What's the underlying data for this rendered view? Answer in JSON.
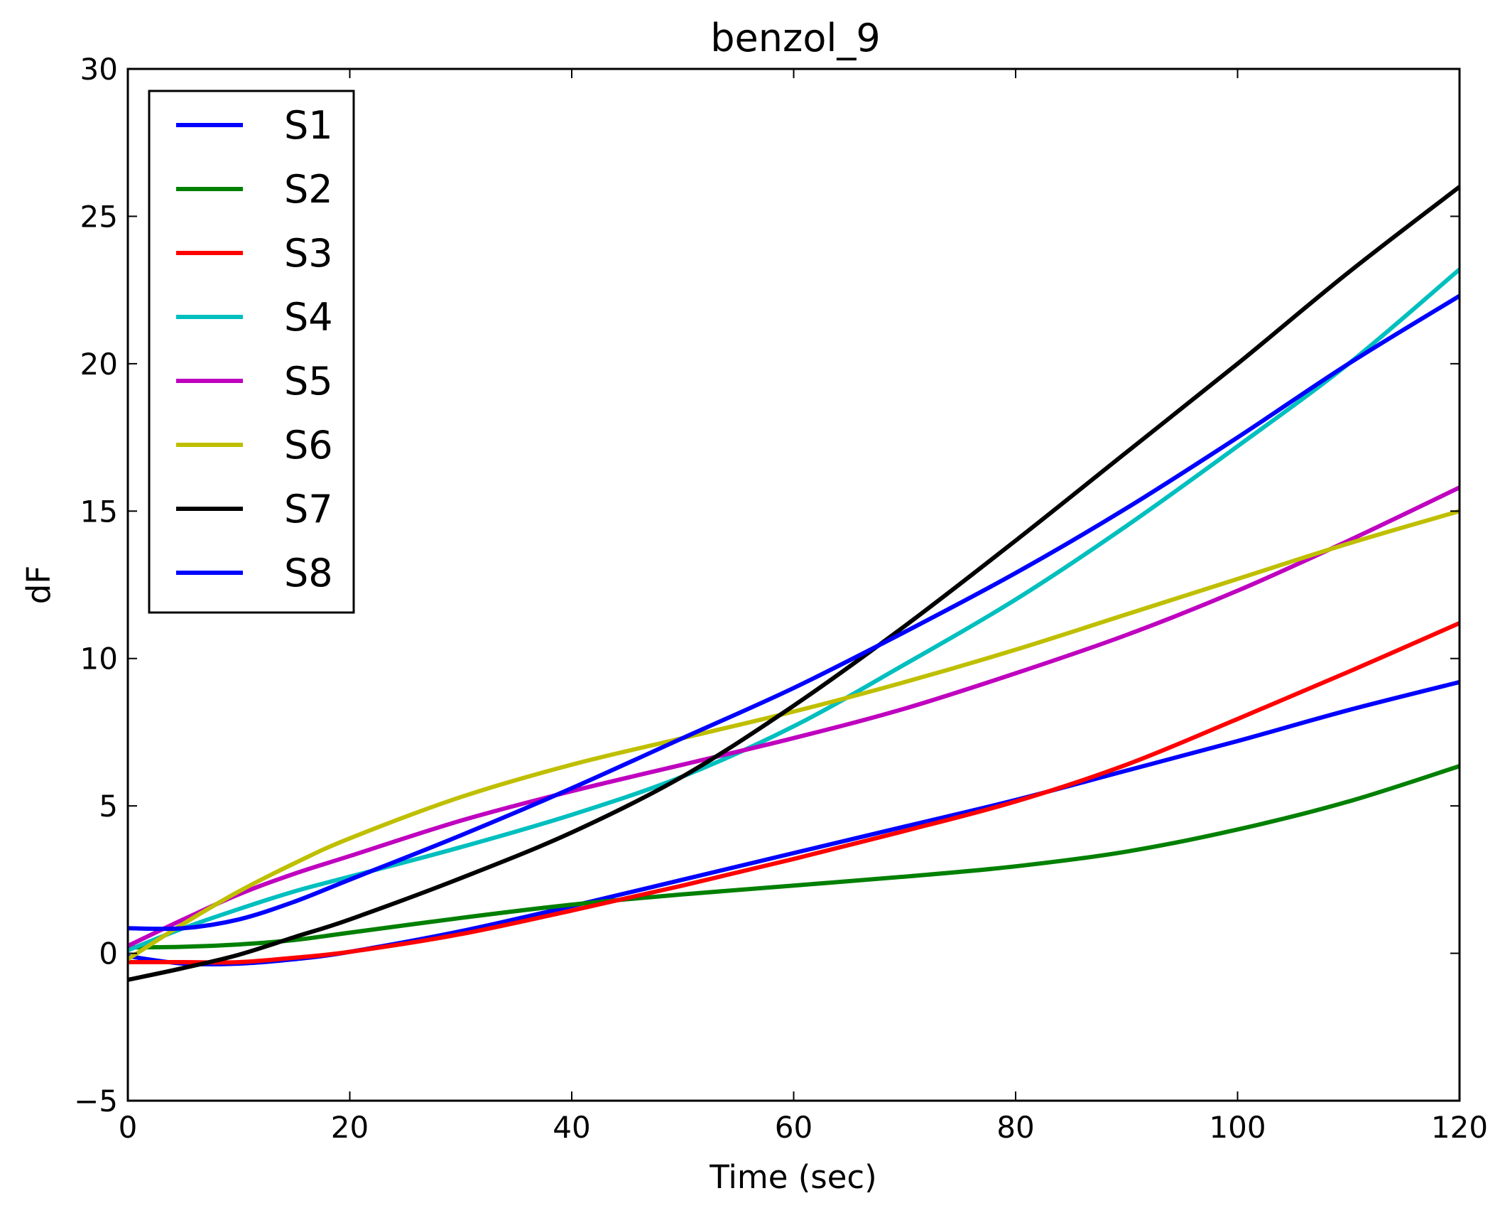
{
  "chart_data": {
    "type": "line",
    "title": "benzol_9",
    "xlabel": "Time (sec)",
    "ylabel": "dF",
    "xlim": [
      0,
      120
    ],
    "ylim": [
      -5,
      30
    ],
    "xticks": [
      0,
      20,
      40,
      60,
      80,
      100,
      120
    ],
    "yticks": [
      -5,
      0,
      5,
      10,
      15,
      20,
      25,
      30
    ],
    "xtick_labels": [
      "0",
      "20",
      "40",
      "60",
      "80",
      "100",
      "120"
    ],
    "ytick_labels": [
      "−5",
      "0",
      "5",
      "10",
      "15",
      "20",
      "25",
      "30"
    ],
    "grid": false,
    "legend_position": "top-left",
    "x": [
      0,
      5,
      10,
      15,
      20,
      30,
      40,
      50,
      60,
      70,
      80,
      90,
      100,
      110,
      120
    ],
    "series": [
      {
        "name": "S1",
        "color": "#0000ff",
        "values": [
          -0.1,
          -0.35,
          -0.35,
          -0.2,
          0.05,
          0.75,
          1.6,
          2.5,
          3.4,
          4.3,
          5.2,
          6.2,
          7.2,
          8.25,
          9.2
        ]
      },
      {
        "name": "S2",
        "color": "#008000",
        "values": [
          0.2,
          0.22,
          0.3,
          0.45,
          0.7,
          1.2,
          1.65,
          2.0,
          2.3,
          2.6,
          2.95,
          3.45,
          4.2,
          5.15,
          6.35
        ]
      },
      {
        "name": "S3",
        "color": "#ff0000",
        "values": [
          -0.3,
          -0.3,
          -0.3,
          -0.15,
          0.05,
          0.65,
          1.45,
          2.3,
          3.2,
          4.15,
          5.15,
          6.4,
          7.95,
          9.55,
          11.2
        ]
      },
      {
        "name": "S4",
        "color": "#00bfbf",
        "values": [
          0.1,
          0.85,
          1.5,
          2.1,
          2.6,
          3.6,
          4.7,
          6.0,
          7.7,
          9.8,
          12.0,
          14.5,
          17.2,
          20.0,
          23.2
        ]
      },
      {
        "name": "S5",
        "color": "#bf00bf",
        "values": [
          0.25,
          1.15,
          2.0,
          2.7,
          3.3,
          4.5,
          5.5,
          6.4,
          7.3,
          8.3,
          9.5,
          10.8,
          12.3,
          14.0,
          15.8
        ]
      },
      {
        "name": "S6",
        "color": "#bfbf00",
        "values": [
          -0.2,
          1.0,
          2.1,
          3.05,
          3.9,
          5.3,
          6.4,
          7.3,
          8.2,
          9.2,
          10.3,
          11.5,
          12.7,
          13.9,
          15.0
        ]
      },
      {
        "name": "S7",
        "color": "#000000",
        "values": [
          -0.9,
          -0.5,
          -0.05,
          0.55,
          1.15,
          2.55,
          4.1,
          6.0,
          8.4,
          11.1,
          14.0,
          17.0,
          20.0,
          23.1,
          26.0
        ]
      },
      {
        "name": "S8",
        "color": "#0000ff",
        "values": [
          0.85,
          0.85,
          1.15,
          1.75,
          2.5,
          4.0,
          5.6,
          7.3,
          9.0,
          10.9,
          12.9,
          15.1,
          17.5,
          20.0,
          22.3
        ]
      }
    ]
  }
}
